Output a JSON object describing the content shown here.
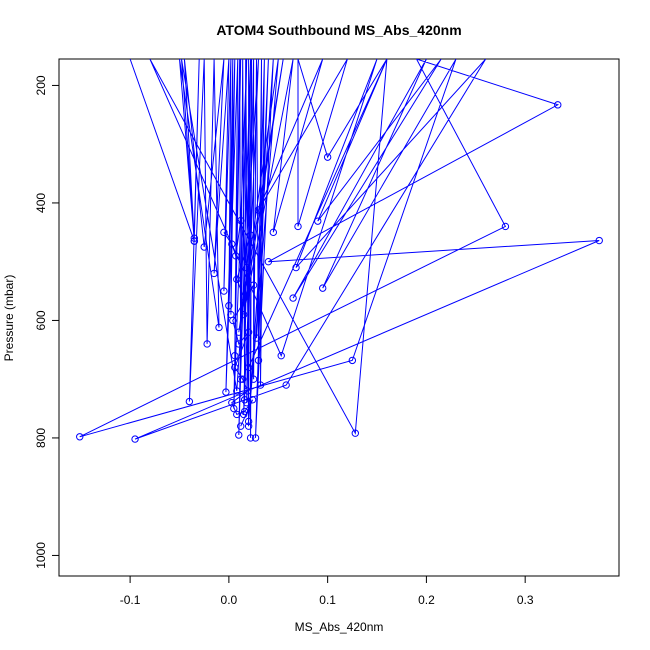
{
  "chart_data": {
    "type": "line",
    "title": "ATOM4 Southbound MS_Abs_420nm",
    "xlabel": "MS_Abs_420nm",
    "ylabel": "Pressure (mbar)",
    "xlim": [
      -0.172,
      0.395
    ],
    "ylim": [
      1035,
      155
    ],
    "y_reversed": true,
    "x_ticks": [
      -0.1,
      0.0,
      0.1,
      0.2,
      0.3
    ],
    "x_tick_labels": [
      "-0.1",
      "0.0",
      "0.1",
      "0.2",
      "0.3"
    ],
    "y_ticks": [
      200,
      400,
      600,
      800,
      1000
    ],
    "y_tick_labels": [
      "200",
      "400",
      "600",
      "800",
      "1000"
    ],
    "grid": false,
    "legend": "none",
    "color": "#0000ff",
    "series": [
      {
        "points": [
          {
            "x": 0.012,
            "y": 155
          },
          {
            "x": 0.005,
            "y": 750
          },
          {
            "x": 0.018,
            "y": 155
          },
          {
            "x": 0.01,
            "y": 795
          },
          {
            "x": 0.022,
            "y": 155
          },
          {
            "x": 0.015,
            "y": 760
          },
          {
            "x": 0.03,
            "y": 155
          },
          {
            "x": 0.008,
            "y": 720
          },
          {
            "x": -0.048,
            "y": 155
          },
          {
            "x": -0.035,
            "y": 460
          },
          {
            "x": -0.03,
            "y": 155
          },
          {
            "x": -0.04,
            "y": 738
          },
          {
            "x": -0.025,
            "y": 155
          },
          {
            "x": -0.022,
            "y": 640
          },
          {
            "x": -0.015,
            "y": 155
          },
          {
            "x": -0.01,
            "y": 612
          },
          {
            "x": -0.05,
            "y": 155
          },
          {
            "x": -0.035,
            "y": 465
          },
          {
            "x": -0.1,
            "y": 155
          },
          {
            "x": -0.035,
            "y": 465
          },
          {
            "x": -0.045,
            "y": 155
          },
          {
            "x": -0.025,
            "y": 475
          },
          {
            "x": -0.005,
            "y": 155
          },
          {
            "x": -0.015,
            "y": 520
          },
          {
            "x": 0.0,
            "y": 155
          },
          {
            "x": -0.005,
            "y": 550
          },
          {
            "x": 0.002,
            "y": 155
          },
          {
            "x": 0.0,
            "y": 575
          },
          {
            "x": 0.004,
            "y": 155
          },
          {
            "x": 0.002,
            "y": 590
          },
          {
            "x": 0.006,
            "y": 155
          },
          {
            "x": -0.003,
            "y": 722
          },
          {
            "x": 0.009,
            "y": 155
          },
          {
            "x": 0.006,
            "y": 660
          },
          {
            "x": 0.011,
            "y": 155
          },
          {
            "x": 0.012,
            "y": 700
          },
          {
            "x": 0.014,
            "y": 155
          },
          {
            "x": 0.016,
            "y": 735
          },
          {
            "x": 0.017,
            "y": 155
          },
          {
            "x": 0.02,
            "y": 780
          },
          {
            "x": 0.02,
            "y": 155
          },
          {
            "x": 0.022,
            "y": 800
          },
          {
            "x": 0.023,
            "y": 155
          },
          {
            "x": 0.018,
            "y": 740
          },
          {
            "x": 0.025,
            "y": 155
          },
          {
            "x": 0.025,
            "y": 700
          },
          {
            "x": 0.028,
            "y": 155
          },
          {
            "x": 0.03,
            "y": 668
          },
          {
            "x": 0.033,
            "y": 155
          },
          {
            "x": 0.032,
            "y": 710
          },
          {
            "x": 0.036,
            "y": 155
          },
          {
            "x": 0.028,
            "y": 630
          },
          {
            "x": 0.04,
            "y": 155
          },
          {
            "x": 0.027,
            "y": 800
          },
          {
            "x": 0.045,
            "y": 155
          },
          {
            "x": 0.02,
            "y": 772
          },
          {
            "x": 0.05,
            "y": 155
          },
          {
            "x": 0.01,
            "y": 620
          },
          {
            "x": 0.055,
            "y": 155
          },
          {
            "x": 0.015,
            "y": 590
          },
          {
            "x": 0.065,
            "y": 155
          },
          {
            "x": 0.045,
            "y": 450
          },
          {
            "x": 0.095,
            "y": 155
          },
          {
            "x": 0.03,
            "y": 412
          },
          {
            "x": 0.12,
            "y": 155
          },
          {
            "x": 0.07,
            "y": 440
          },
          {
            "x": 0.07,
            "y": 155
          },
          {
            "x": 0.1,
            "y": 322
          },
          {
            "x": 0.16,
            "y": 155
          },
          {
            "x": 0.09,
            "y": 431
          },
          {
            "x": 0.215,
            "y": 155
          },
          {
            "x": 0.065,
            "y": 562
          },
          {
            "x": 0.2,
            "y": 155
          },
          {
            "x": 0.095,
            "y": 545
          },
          {
            "x": 0.23,
            "y": 155
          },
          {
            "x": 0.125,
            "y": 668
          },
          {
            "x": -0.151,
            "y": 798
          },
          {
            "x": 0.28,
            "y": 440
          },
          {
            "x": 0.19,
            "y": 155
          },
          {
            "x": 0.333,
            "y": 233
          },
          {
            "x": 0.04,
            "y": 500
          },
          {
            "x": 0.375,
            "y": 464
          },
          {
            "x": -0.095,
            "y": 802
          },
          {
            "x": 0.058,
            "y": 710
          },
          {
            "x": 0.26,
            "y": 155
          },
          {
            "x": 0.068,
            "y": 510
          },
          {
            "x": 0.15,
            "y": 155
          },
          {
            "x": 0.053,
            "y": 660
          },
          {
            "x": -0.08,
            "y": 155
          },
          {
            "x": 0.128,
            "y": 792
          },
          {
            "x": 0.16,
            "y": 155
          },
          {
            "x": 0.02,
            "y": 680
          }
        ]
      },
      {
        "points": [
          {
            "x": -0.005,
            "y": 450
          },
          {
            "x": 0.003,
            "y": 470
          },
          {
            "x": 0.007,
            "y": 490
          },
          {
            "x": 0.012,
            "y": 430
          },
          {
            "x": 0.018,
            "y": 510
          },
          {
            "x": 0.022,
            "y": 455
          },
          {
            "x": 0.008,
            "y": 530
          },
          {
            "x": 0.015,
            "y": 560
          },
          {
            "x": 0.025,
            "y": 540
          },
          {
            "x": 0.004,
            "y": 600
          },
          {
            "x": 0.01,
            "y": 640
          },
          {
            "x": 0.02,
            "y": 620
          },
          {
            "x": 0.006,
            "y": 680
          },
          {
            "x": 0.014,
            "y": 700
          },
          {
            "x": 0.019,
            "y": 720
          },
          {
            "x": 0.003,
            "y": 740
          },
          {
            "x": 0.008,
            "y": 760
          },
          {
            "x": 0.016,
            "y": 755
          },
          {
            "x": 0.024,
            "y": 735
          },
          {
            "x": 0.012,
            "y": 780
          }
        ]
      }
    ]
  }
}
